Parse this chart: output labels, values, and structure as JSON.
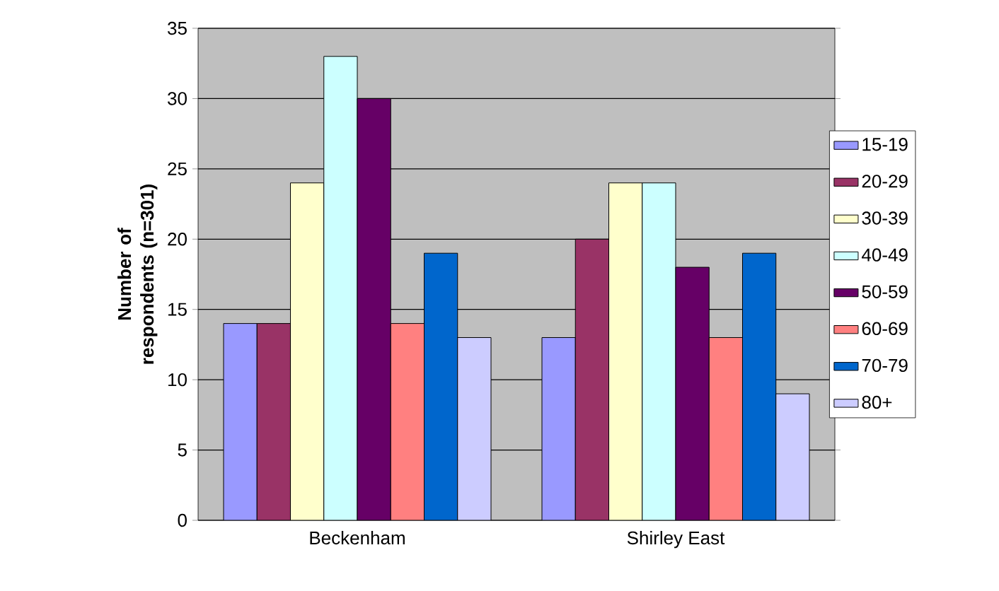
{
  "chart_data": {
    "type": "bar",
    "ylabel": "Number of respondents (n=301)",
    "categories": [
      "Beckenham",
      "Shirley East"
    ],
    "series": [
      {
        "name": "15-19",
        "color": "#9999ff",
        "values": [
          14,
          13
        ]
      },
      {
        "name": "20-29",
        "color": "#993366",
        "values": [
          14,
          20
        ]
      },
      {
        "name": "30-39",
        "color": "#ffffcc",
        "values": [
          24,
          24
        ]
      },
      {
        "name": "40-49",
        "color": "#ccffff",
        "values": [
          33,
          24
        ]
      },
      {
        "name": "50-59",
        "color": "#660066",
        "values": [
          30,
          18
        ]
      },
      {
        "name": "60-69",
        "color": "#ff8080",
        "values": [
          14,
          13
        ]
      },
      {
        "name": "70-79",
        "color": "#0066cc",
        "values": [
          19,
          19
        ]
      },
      {
        "name": "80+",
        "color": "#ccccff",
        "values": [
          13,
          9
        ]
      }
    ],
    "ylim": [
      0,
      35
    ],
    "yticks": [
      0,
      5,
      10,
      15,
      20,
      25,
      30,
      35
    ],
    "grid": "y",
    "legend": "right"
  }
}
